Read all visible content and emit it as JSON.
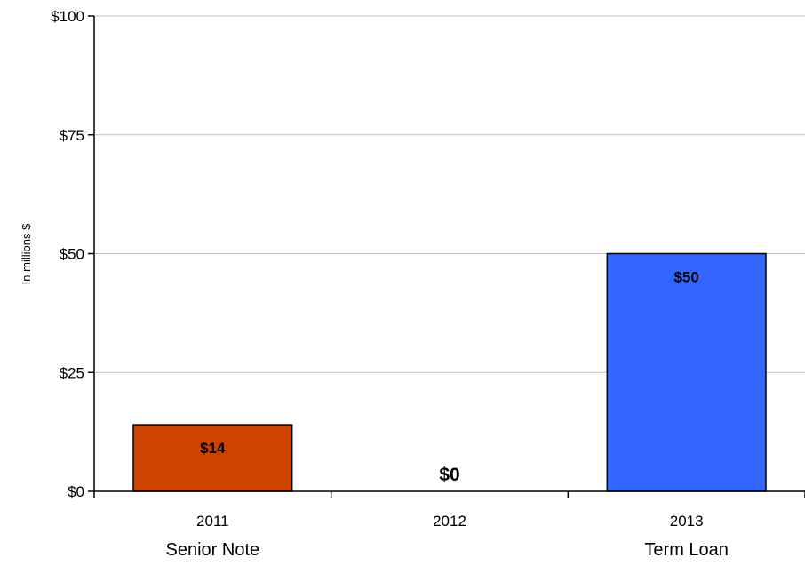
{
  "chart_data": {
    "type": "bar",
    "categories": [
      "2011",
      "2012",
      "2013"
    ],
    "subcategories": [
      "Senior Note",
      "",
      "Term Loan"
    ],
    "values": [
      14,
      0,
      50
    ],
    "data_labels": [
      "$14",
      "$0",
      "$50"
    ],
    "bar_colors": [
      "#CC4400",
      "#CC4400",
      "#3366FF"
    ],
    "title": "",
    "xlabel": "",
    "ylabel": "In millions $",
    "ylim": [
      0,
      100
    ],
    "yticks": [
      0,
      25,
      50,
      75,
      100
    ],
    "ytick_labels": [
      "$0",
      "$25",
      "$50",
      "$75",
      "$100"
    ],
    "grid": true,
    "legend": "none"
  }
}
